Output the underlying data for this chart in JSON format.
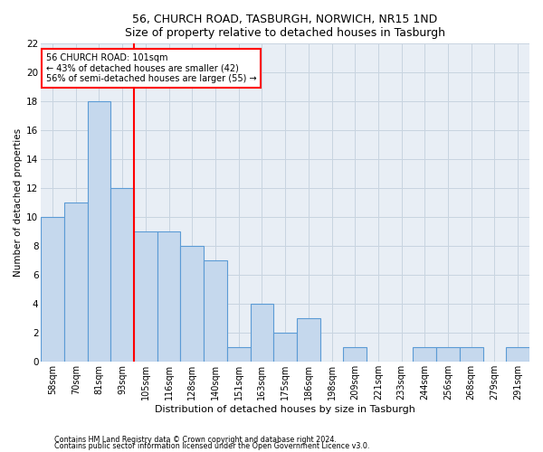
{
  "title1": "56, CHURCH ROAD, TASBURGH, NORWICH, NR15 1ND",
  "title2": "Size of property relative to detached houses in Tasburgh",
  "xlabel": "Distribution of detached houses by size in Tasburgh",
  "ylabel": "Number of detached properties",
  "categories": [
    "58sqm",
    "70sqm",
    "81sqm",
    "93sqm",
    "105sqm",
    "116sqm",
    "128sqm",
    "140sqm",
    "151sqm",
    "163sqm",
    "175sqm",
    "186sqm",
    "198sqm",
    "209sqm",
    "221sqm",
    "233sqm",
    "244sqm",
    "256sqm",
    "268sqm",
    "279sqm",
    "291sqm"
  ],
  "values": [
    10,
    11,
    18,
    12,
    9,
    9,
    8,
    7,
    1,
    4,
    2,
    3,
    0,
    1,
    0,
    0,
    1,
    1,
    1,
    0,
    1
  ],
  "bar_color": "#c5d8ed",
  "bar_edge_color": "#5b9bd5",
  "bar_linewidth": 0.8,
  "red_line_x": 3.5,
  "annotation_text": "56 CHURCH ROAD: 101sqm\n← 43% of detached houses are smaller (42)\n56% of semi-detached houses are larger (55) →",
  "annotation_box_color": "white",
  "annotation_box_edge": "red",
  "ylim": [
    0,
    22
  ],
  "yticks": [
    0,
    2,
    4,
    6,
    8,
    10,
    12,
    14,
    16,
    18,
    20,
    22
  ],
  "grid_color": "#c8d4e0",
  "bg_color": "#e8eef5",
  "footer1": "Contains HM Land Registry data © Crown copyright and database right 2024.",
  "footer2": "Contains public sector information licensed under the Open Government Licence v3.0."
}
